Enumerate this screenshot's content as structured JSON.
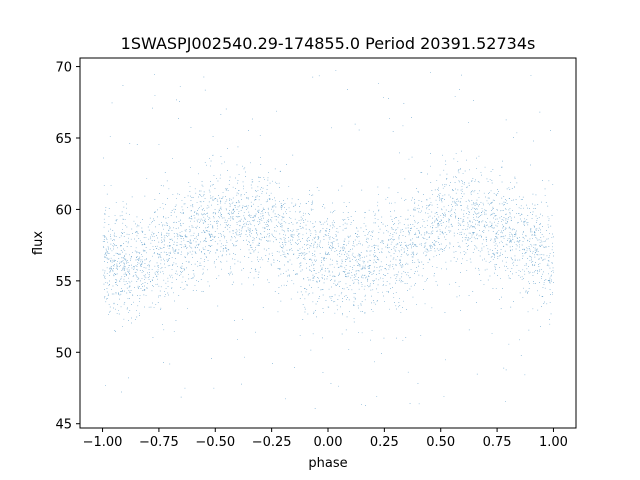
{
  "chart_data": {
    "type": "scatter",
    "title": "1SWASPJ002540.29-174855.0 Period 20391.52734s",
    "xlabel": "phase",
    "ylabel": "flux",
    "xlim": [
      -1.1,
      1.1
    ],
    "ylim": [
      44.7,
      70.6
    ],
    "xticks": [
      -1.0,
      -0.75,
      -0.5,
      -0.25,
      0.0,
      0.25,
      0.5,
      0.75,
      1.0
    ],
    "xtick_labels": [
      "−1.00",
      "−0.75",
      "−0.50",
      "−0.25",
      "0.00",
      "0.25",
      "0.50",
      "0.75",
      "1.00"
    ],
    "yticks": [
      45,
      50,
      55,
      60,
      65,
      70
    ],
    "ytick_labels": [
      "45",
      "50",
      "55",
      "60",
      "65",
      "70"
    ],
    "grid": false,
    "legend": "none",
    "marker_color": "#1f77b4",
    "series": [
      {
        "points": "phase-folded light curve, phase range -1.00 to 1.00, approx. 30000 points",
        "trend_phase": [
          -1.0,
          -0.9,
          -0.8,
          -0.7,
          -0.6,
          -0.5,
          -0.4,
          -0.3,
          -0.2,
          -0.1,
          0.0,
          0.1,
          0.2,
          0.3,
          0.4,
          0.5,
          0.6,
          0.7,
          0.8,
          0.9,
          1.0
        ],
        "trend_flux_median": [
          56.5,
          56.0,
          56.5,
          57.3,
          58.3,
          59.0,
          59.3,
          59.0,
          58.2,
          57.3,
          56.5,
          56.0,
          56.5,
          57.3,
          58.3,
          59.0,
          59.3,
          59.0,
          58.2,
          57.3,
          56.5
        ],
        "trend_flux_spread": 2.2
      }
    ]
  }
}
